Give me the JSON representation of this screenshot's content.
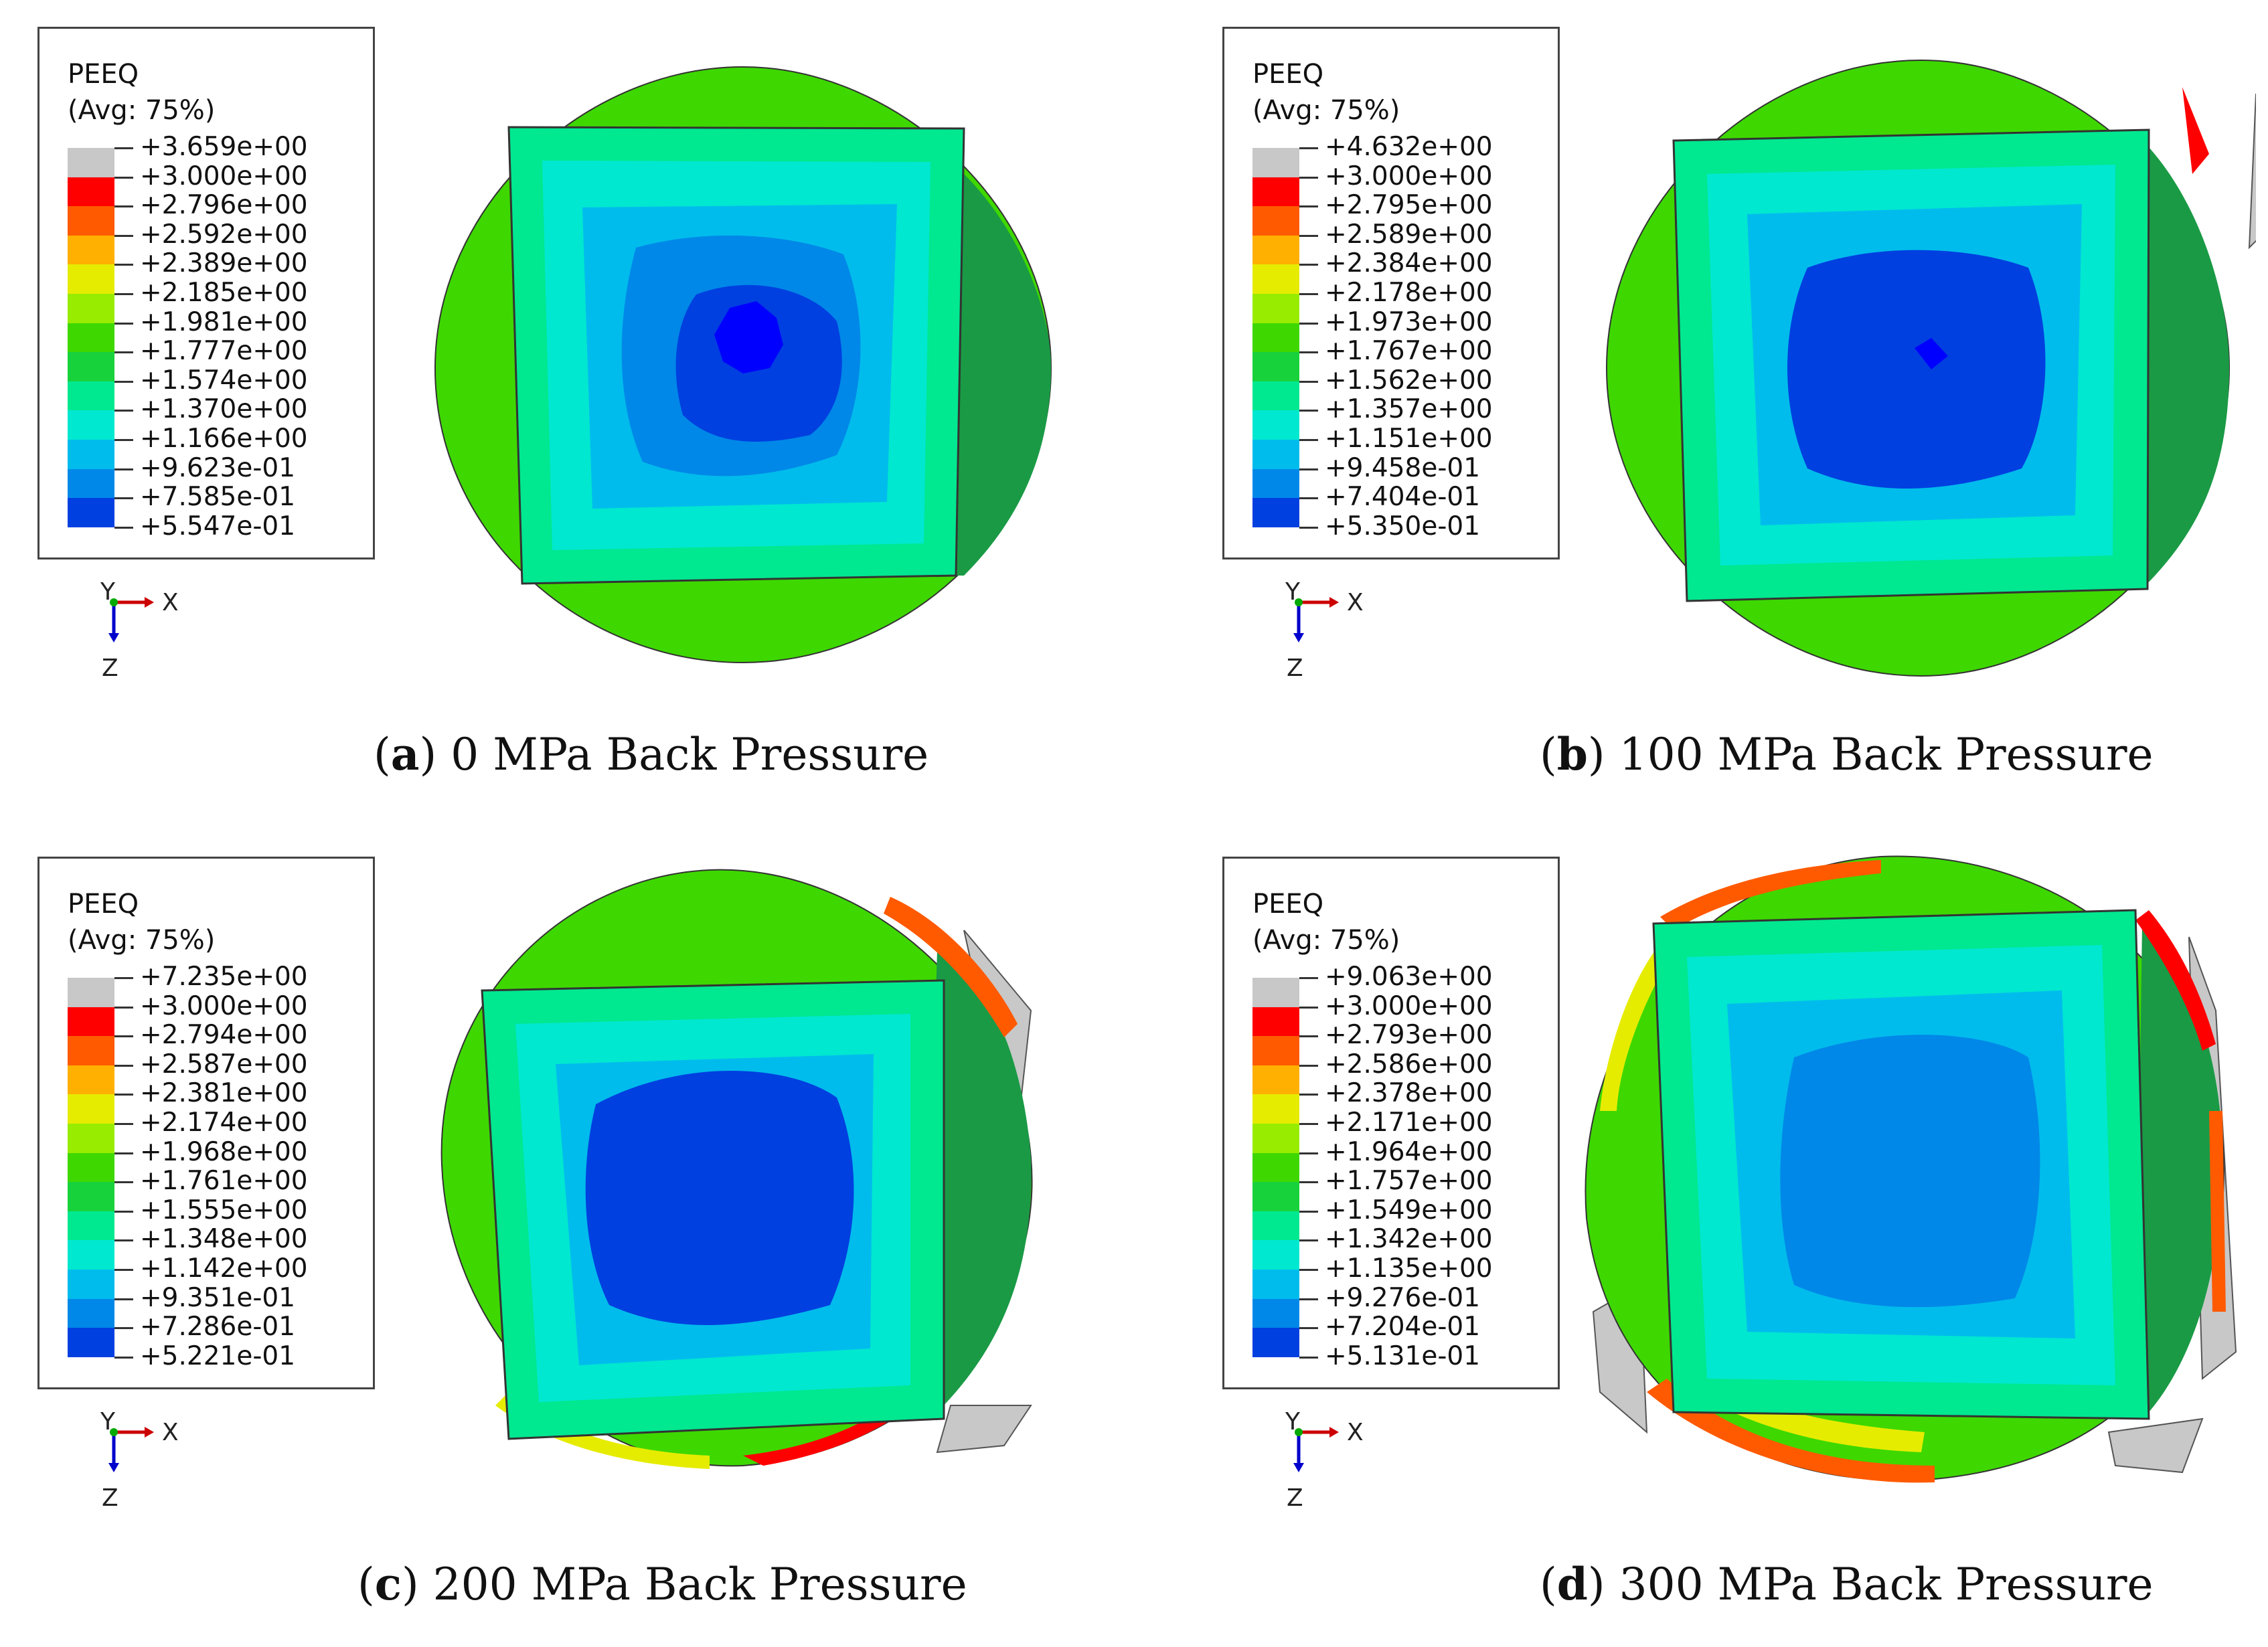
{
  "colorbar": [
    "#c8c8c8",
    "#ff0000",
    "#ff5a00",
    "#ffb000",
    "#e6ec00",
    "#98ec00",
    "#3ed800",
    "#18d23c",
    "#00e890",
    "#00e8d0",
    "#00bcec",
    "#0088e8",
    "#0040e0",
    "#0000ff"
  ],
  "panels": [
    {
      "id": "a",
      "label": "a",
      "caption": "0 MPa Back Pressure",
      "legend_title": "PEEQ",
      "legend_subtitle": "(Avg: 75%)",
      "legend_values": [
        "+3.659e+00",
        "+3.000e+00",
        "+2.796e+00",
        "+2.592e+00",
        "+2.389e+00",
        "+2.185e+00",
        "+1.981e+00",
        "+1.777e+00",
        "+1.574e+00",
        "+1.370e+00",
        "+1.166e+00",
        "+9.623e-01",
        "+7.585e-01",
        "+5.547e-01"
      ]
    },
    {
      "id": "b",
      "label": "b",
      "caption": "100 MPa Back Pressure",
      "legend_title": "PEEQ",
      "legend_subtitle": "(Avg: 75%)",
      "legend_values": [
        "+4.632e+00",
        "+3.000e+00",
        "+2.795e+00",
        "+2.589e+00",
        "+2.384e+00",
        "+2.178e+00",
        "+1.973e+00",
        "+1.767e+00",
        "+1.562e+00",
        "+1.357e+00",
        "+1.151e+00",
        "+9.458e-01",
        "+7.404e-01",
        "+5.350e-01"
      ]
    },
    {
      "id": "c",
      "label": "c",
      "caption": "200 MPa Back Pressure",
      "legend_title": "PEEQ",
      "legend_subtitle": "(Avg: 75%)",
      "legend_values": [
        "+7.235e+00",
        "+3.000e+00",
        "+2.794e+00",
        "+2.587e+00",
        "+2.381e+00",
        "+2.174e+00",
        "+1.968e+00",
        "+1.761e+00",
        "+1.555e+00",
        "+1.348e+00",
        "+1.142e+00",
        "+9.351e-01",
        "+7.286e-01",
        "+5.221e-01"
      ]
    },
    {
      "id": "d",
      "label": "d",
      "caption": "300 MPa Back Pressure",
      "legend_title": "PEEQ",
      "legend_subtitle": "(Avg: 75%)",
      "legend_values": [
        "+9.063e+00",
        "+3.000e+00",
        "+2.793e+00",
        "+2.586e+00",
        "+2.378e+00",
        "+2.171e+00",
        "+1.964e+00",
        "+1.757e+00",
        "+1.549e+00",
        "+1.342e+00",
        "+1.135e+00",
        "+9.276e-01",
        "+7.204e-01",
        "+5.131e-01"
      ]
    }
  ],
  "axes": {
    "y": "Y",
    "x": "X",
    "z": "Z"
  }
}
